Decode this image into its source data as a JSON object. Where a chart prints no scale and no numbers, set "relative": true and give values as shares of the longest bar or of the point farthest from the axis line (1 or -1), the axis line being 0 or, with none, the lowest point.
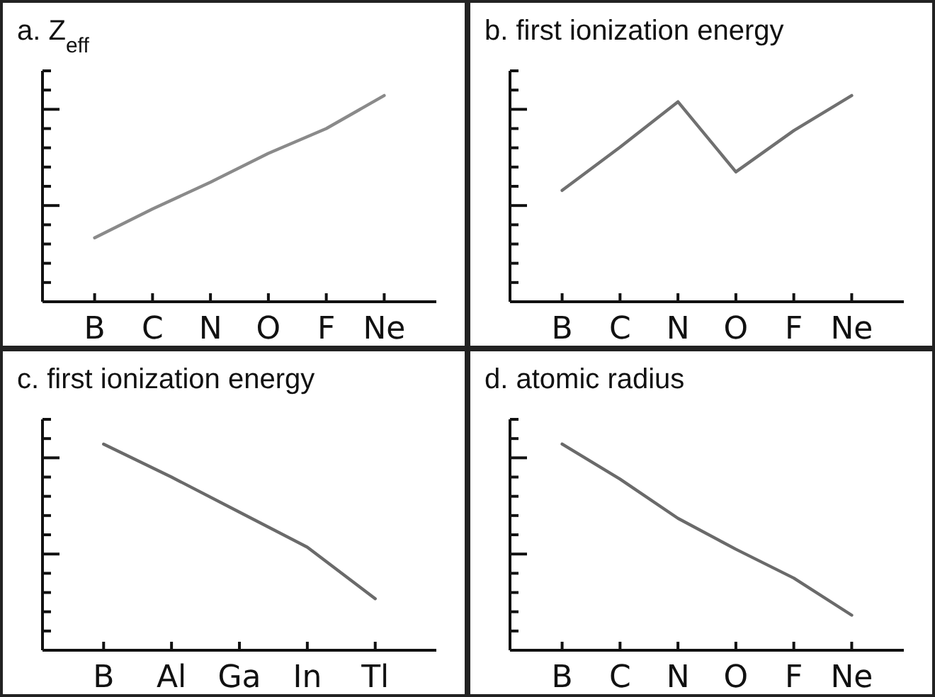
{
  "chart_data": [
    {
      "type": "line",
      "title": "a. Z$_{eff}$",
      "categories": [
        "B",
        "C",
        "N",
        "O",
        "F",
        "Ne"
      ],
      "relative": true,
      "series": [
        {
          "color": "#8a8a8a",
          "values": [
            0.31,
            0.45,
            0.58,
            0.72,
            0.84,
            1
          ]
        }
      ]
    },
    {
      "type": "line",
      "title": "b. first ionization energy",
      "categories": [
        "B",
        "C",
        "N",
        "O",
        "F",
        "Ne"
      ],
      "relative": true,
      "series": [
        {
          "color": "#707070",
          "values": [
            0.54,
            0.75,
            0.97,
            0.63,
            0.83,
            1
          ]
        }
      ]
    },
    {
      "type": "line",
      "title": "c. first ionization energy",
      "categories": [
        "B",
        "Al",
        "Ga",
        "In",
        "Tl"
      ],
      "relative": true,
      "series": [
        {
          "color": "#6a6a6a",
          "values": [
            1,
            0.84,
            0.67,
            0.5,
            0.25
          ]
        }
      ]
    },
    {
      "type": "line",
      "title": "d. atomic radius",
      "categories": [
        "B",
        "C",
        "N",
        "O",
        "F",
        "Ne"
      ],
      "relative": true,
      "series": [
        {
          "color": "#6a6a6a",
          "values": [
            1,
            0.83,
            0.64,
            0.49,
            0.35,
            0.17
          ]
        }
      ]
    }
  ]
}
